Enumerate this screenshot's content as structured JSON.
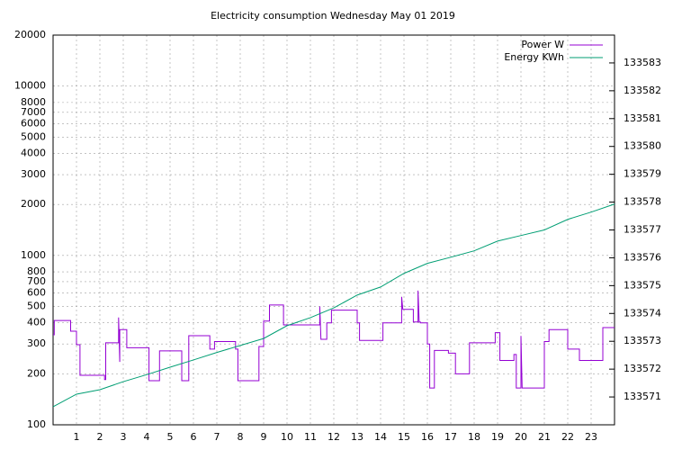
{
  "chart_data": {
    "type": "line",
    "title": "Electricity consumption Wednesday May 01 2019",
    "xlim": [
      0,
      24
    ],
    "xticks": [
      1,
      2,
      3,
      4,
      5,
      6,
      7,
      8,
      9,
      10,
      11,
      12,
      13,
      14,
      15,
      16,
      17,
      18,
      19,
      20,
      21,
      22,
      23
    ],
    "ylim": [
      100,
      20000
    ],
    "log_y": true,
    "yticks": [
      100,
      200,
      300,
      400,
      500,
      600,
      700,
      800,
      1000,
      2000,
      3000,
      4000,
      5000,
      6000,
      7000,
      8000,
      10000,
      20000
    ],
    "y2lim": [
      133570,
      133584
    ],
    "y2ticks": [
      133571,
      133572,
      133573,
      133574,
      133575,
      133576,
      133577,
      133578,
      133579,
      133580,
      133581,
      133582,
      133583
    ],
    "grid": true,
    "legend": "top-right",
    "series": [
      {
        "name": "Power W",
        "color": "#9400d3",
        "x": [
          0,
          0.05,
          0.05,
          0.75,
          0.75,
          1.0,
          1.0,
          1.15,
          1.15,
          2.2,
          2.2,
          2.25,
          2.25,
          2.8,
          2.8,
          2.85,
          2.85,
          3.15,
          3.15,
          4.1,
          4.1,
          4.55,
          4.55,
          5.5,
          5.5,
          5.8,
          5.8,
          6.7,
          6.7,
          6.9,
          6.9,
          7.8,
          7.8,
          7.9,
          7.9,
          8.8,
          8.8,
          9.0,
          9.0,
          9.25,
          9.25,
          9.85,
          9.85,
          11.4,
          11.4,
          11.45,
          11.7,
          11.7,
          11.9,
          11.9,
          13.0,
          13.0,
          13.1,
          13.1,
          14.1,
          14.1,
          14.9,
          14.9,
          14.95,
          15.4,
          15.4,
          15.6,
          15.6,
          15.65,
          15.7,
          15.7,
          16.0,
          16.0,
          16.1,
          16.1,
          16.3,
          16.3,
          16.9,
          16.9,
          17.2,
          17.2,
          17.8,
          17.8,
          18.9,
          18.9,
          19.1,
          19.1,
          19.7,
          19.7,
          19.8,
          19.8,
          20.0,
          20.0,
          20.05,
          21.0,
          21.0,
          21.2,
          21.2,
          22.0,
          22.0,
          22.5,
          22.5,
          23.5,
          23.5,
          24
        ],
        "values": [
          340,
          340,
          413,
          413,
          357,
          357,
          297,
          297,
          196,
          196,
          185,
          185,
          305,
          305,
          430,
          235,
          365,
          365,
          285,
          285,
          182,
          182,
          273,
          273,
          182,
          182,
          336,
          336,
          280,
          280,
          310,
          310,
          280,
          280,
          182,
          182,
          290,
          290,
          410,
          410,
          510,
          510,
          389,
          389,
          500,
          320,
          320,
          400,
          400,
          475,
          475,
          400,
          400,
          315,
          315,
          400,
          400,
          570,
          480,
          480,
          405,
          405,
          620,
          405,
          405,
          400,
          400,
          300,
          300,
          165,
          165,
          275,
          275,
          265,
          265,
          200,
          200,
          305,
          305,
          350,
          350,
          240,
          240,
          260,
          260,
          165,
          165,
          335,
          165,
          165,
          310,
          310,
          365,
          365,
          280,
          280,
          240,
          240,
          375,
          375
        ]
      },
      {
        "name": "Energy KWh",
        "color": "#009e73",
        "axis": "y2",
        "x": [
          0,
          1,
          2,
          3,
          4,
          5,
          6,
          7,
          8,
          9,
          10,
          11,
          12,
          13,
          14,
          15,
          16,
          17,
          18,
          19,
          20,
          21,
          22,
          23,
          24
        ],
        "values": [
          133570.65,
          133571.1,
          133571.26,
          133571.55,
          133571.8,
          133572.07,
          133572.33,
          133572.6,
          133572.85,
          133573.1,
          133573.56,
          133573.85,
          133574.2,
          133574.66,
          133574.95,
          133575.44,
          133575.8,
          133576.02,
          133576.25,
          133576.6,
          133576.8,
          133577.0,
          133577.38,
          133577.64,
          133577.93
        ]
      }
    ]
  }
}
